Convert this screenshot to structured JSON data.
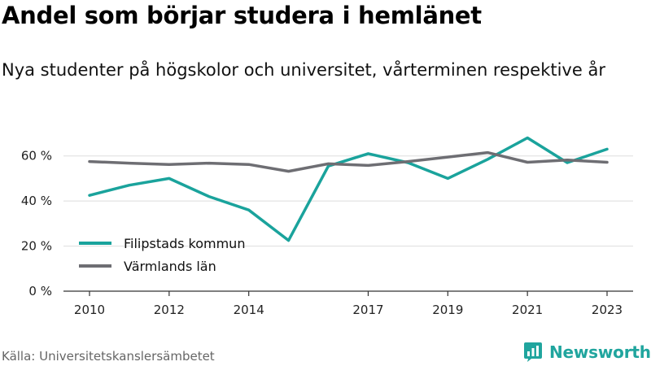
{
  "title": "Andel som börjar studera i hemlänet",
  "subtitle": "Nya studenter på högskolor och universitet, vårterminen respektive år",
  "source": "Källa: Universitetskanslersämbetet",
  "brand": {
    "name": "Newsworthy",
    "icon": "newsworthy-logo-icon",
    "color": "#20a59e"
  },
  "chart_data": {
    "type": "line",
    "title": "",
    "xlabel": "",
    "ylabel": "",
    "ylim": [
      0,
      70
    ],
    "xlim": [
      2010,
      2023
    ],
    "y_ticks": [
      0,
      20,
      40,
      60
    ],
    "y_tick_labels": [
      "0 %",
      "20 %",
      "40 %",
      "60 %"
    ],
    "x_ticks": [
      2010,
      2012,
      2014,
      2017,
      2019,
      2021,
      2023
    ],
    "x_tick_labels": [
      "2010",
      "2012",
      "2014",
      "2017",
      "2019",
      "2021",
      "2023"
    ],
    "grid": true,
    "legend_position": "bottom-left",
    "x": [
      2010,
      2011,
      2012,
      2013,
      2014,
      2015,
      2016,
      2017,
      2018,
      2019,
      2020,
      2021,
      2022,
      2023
    ],
    "series": [
      {
        "name": "Filipstads kommun",
        "color": "#1aa39c",
        "values": [
          42.5,
          47,
          50,
          42,
          36,
          22.5,
          55.5,
          61,
          57,
          50,
          58.5,
          68,
          57,
          63
        ]
      },
      {
        "name": "Värmlands län",
        "color": "#6e6e73",
        "values": [
          57.5,
          56.8,
          56.2,
          56.8,
          56.2,
          53.2,
          56.5,
          55.8,
          57.5,
          59.5,
          61.5,
          57.2,
          58.2,
          57.2
        ]
      }
    ]
  }
}
